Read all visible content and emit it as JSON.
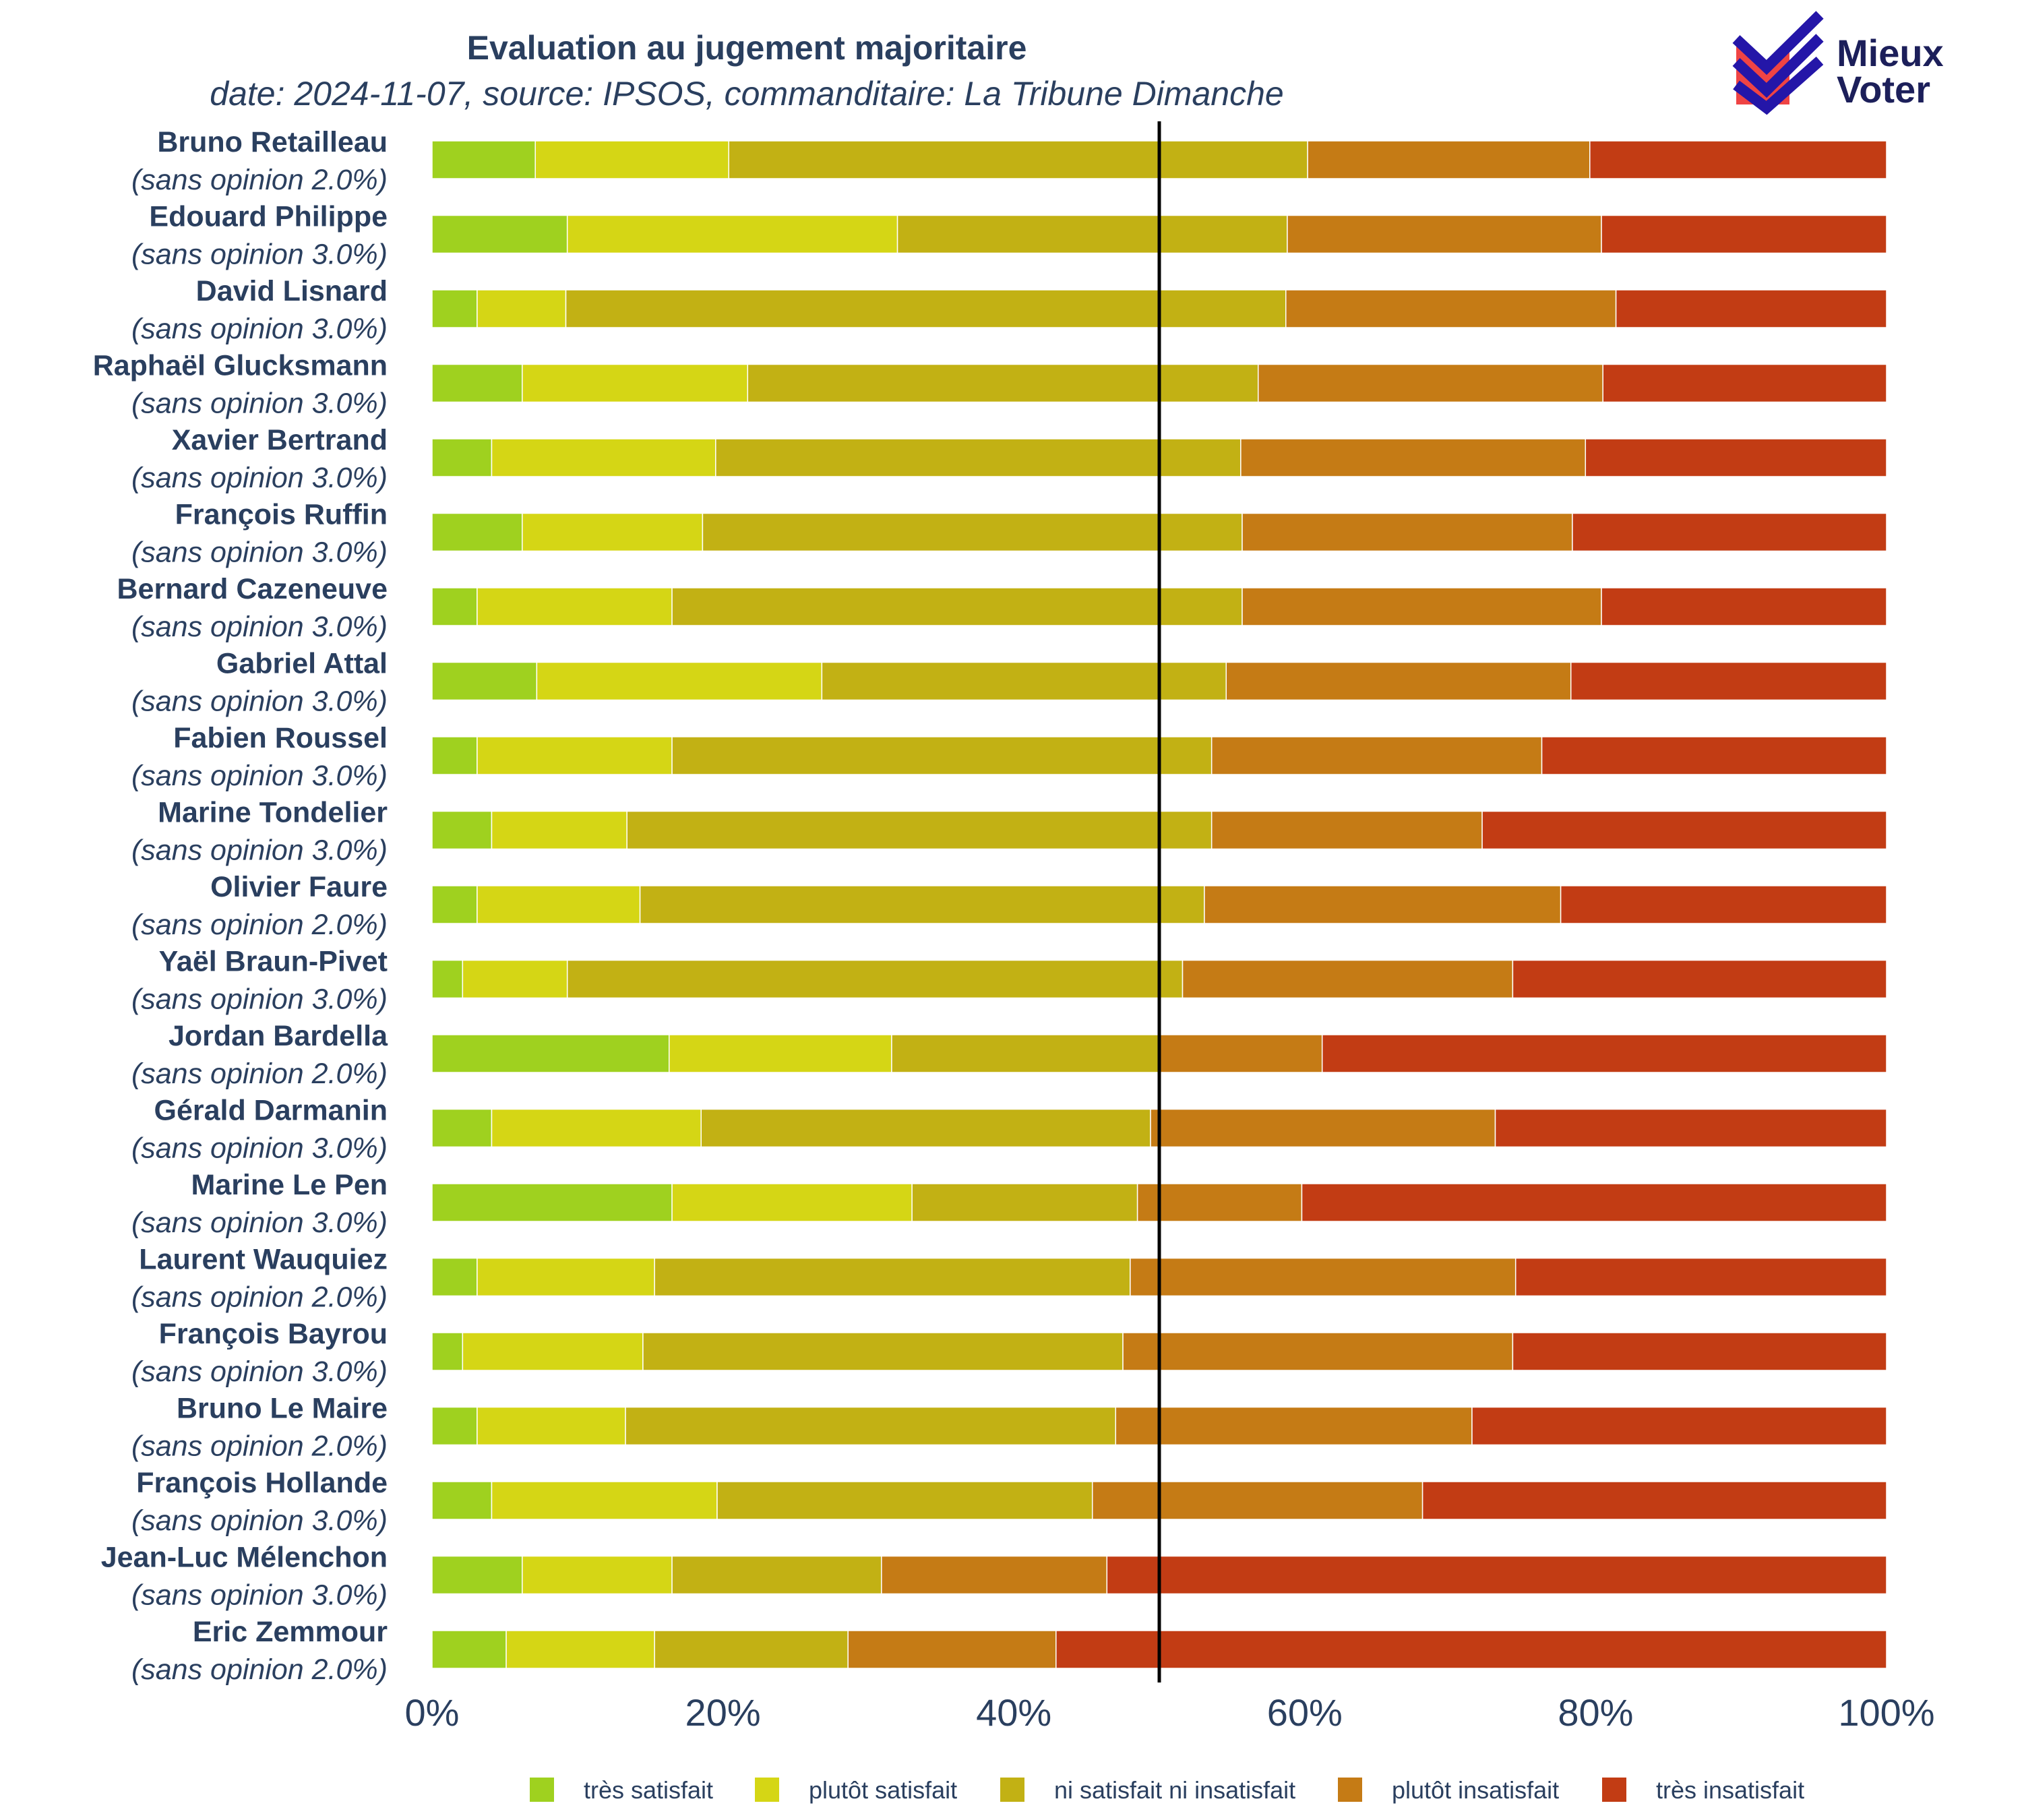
{
  "colors": {
    "tres_satisfait": "#9fd11f",
    "plutot_satisfait": "#d5d615",
    "ni": "#c2b114",
    "plutot_insatisfait": "#c57b15",
    "tres_insatisfait": "#c23c14",
    "text": "#2a3f5f",
    "logo_dark": "#2416a8",
    "logo_red": "#ef4444",
    "median_line": "#000000"
  },
  "logo": {
    "line1": "Mieux",
    "line2": "Voter"
  },
  "chart_data": {
    "type": "bar",
    "orientation": "horizontal",
    "stacked": true,
    "title": "Evaluation au jugement majoritaire",
    "subtitle": "date: 2024-11-07, source: IPSOS, commanditaire: La Tribune Dimanche",
    "xlim": [
      0,
      100
    ],
    "x_ticks": [
      "0%",
      "20%",
      "40%",
      "60%",
      "80%",
      "100%"
    ],
    "median_line_at": 50,
    "legend_position": "bottom",
    "categories": [
      "Bruno Retailleau",
      "Edouard Philippe",
      "David Lisnard",
      "Raphaël Glucksmann",
      "Xavier Bertrand",
      "François Ruffin",
      "Bernard Cazeneuve",
      "Gabriel Attal",
      "Fabien Roussel",
      "Marine Tondelier",
      "Olivier Faure",
      "Yaël Braun-Pivet",
      "Jordan Bardella",
      "Gérald Darmanin",
      "Marine Le Pen",
      "Laurent Wauquiez",
      "François Bayrou",
      "Bruno Le Maire",
      "François Hollande",
      "Jean-Luc Mélenchon",
      "Eric Zemmour"
    ],
    "sans_opinion": [
      "(sans opinion 2.0%)",
      "(sans opinion 3.0%)",
      "(sans opinion 3.0%)",
      "(sans opinion 3.0%)",
      "(sans opinion 3.0%)",
      "(sans opinion 3.0%)",
      "(sans opinion 3.0%)",
      "(sans opinion 3.0%)",
      "(sans opinion 3.0%)",
      "(sans opinion 3.0%)",
      "(sans opinion 2.0%)",
      "(sans opinion 3.0%)",
      "(sans opinion 2.0%)",
      "(sans opinion 3.0%)",
      "(sans opinion 3.0%)",
      "(sans opinion 2.0%)",
      "(sans opinion 3.0%)",
      "(sans opinion 2.0%)",
      "(sans opinion 3.0%)",
      "(sans opinion 3.0%)",
      "(sans opinion 2.0%)"
    ],
    "series": [
      {
        "name": "très satisfait",
        "color_key": "tres_satisfait",
        "values": [
          7.1,
          9.3,
          3.1,
          6.2,
          4.1,
          6.2,
          3.1,
          7.2,
          3.1,
          4.1,
          3.1,
          2.1,
          16.3,
          4.1,
          16.5,
          3.1,
          2.1,
          3.1,
          4.1,
          6.2,
          5.1
        ]
      },
      {
        "name": "plutôt satisfait",
        "color_key": "plutot_satisfait",
        "values": [
          13.3,
          22.7,
          6.1,
          15.5,
          15.4,
          12.4,
          13.4,
          19.6,
          13.4,
          9.3,
          11.2,
          7.2,
          15.3,
          14.4,
          16.5,
          12.2,
          12.4,
          10.2,
          15.5,
          10.3,
          10.2
        ]
      },
      {
        "name": "ni satisfait ni insatisfait",
        "color_key": "ni",
        "values": [
          39.8,
          26.8,
          49.5,
          35.1,
          36.1,
          37.1,
          39.2,
          27.8,
          37.1,
          40.2,
          38.8,
          42.3,
          18.4,
          30.9,
          15.5,
          32.7,
          33.0,
          33.7,
          25.8,
          14.4,
          13.3
        ]
      },
      {
        "name": "plutôt insatisfait",
        "color_key": "plutot_insatisfait",
        "values": [
          19.4,
          21.6,
          22.7,
          23.7,
          23.7,
          22.7,
          24.7,
          23.7,
          22.7,
          18.6,
          24.5,
          22.7,
          11.2,
          23.7,
          11.3,
          26.5,
          26.8,
          24.5,
          22.7,
          15.5,
          14.3
        ]
      },
      {
        "name": "très insatisfait",
        "color_key": "tres_insatisfait",
        "values": [
          20.4,
          19.6,
          18.6,
          19.5,
          20.7,
          21.6,
          19.6,
          21.7,
          23.7,
          27.8,
          22.4,
          25.7,
          38.8,
          26.9,
          40.2,
          25.5,
          25.7,
          28.5,
          31.9,
          53.6,
          57.1
        ]
      }
    ]
  }
}
